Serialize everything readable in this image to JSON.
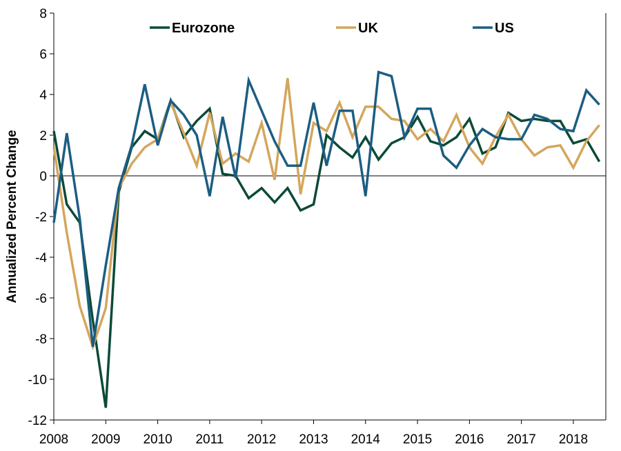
{
  "chart_data": {
    "type": "line",
    "title": "",
    "xlabel": "",
    "ylabel": "Annualized Percent Change",
    "ylim": [
      -12,
      8
    ],
    "yticks": [
      8,
      6,
      4,
      2,
      0,
      -2,
      -4,
      -6,
      -8,
      -10,
      -12
    ],
    "xlim": [
      2008,
      2018.625
    ],
    "xticks": [
      2008,
      2009,
      2010,
      2011,
      2012,
      2013,
      2014,
      2015,
      2016,
      2017,
      2018
    ],
    "grid": false,
    "legend": "top",
    "x": [
      2008.0,
      2008.25,
      2008.5,
      2008.75,
      2009.0,
      2009.25,
      2009.5,
      2009.75,
      2010.0,
      2010.25,
      2010.5,
      2010.75,
      2011.0,
      2011.25,
      2011.5,
      2011.75,
      2012.0,
      2012.25,
      2012.5,
      2012.75,
      2013.0,
      2013.25,
      2013.5,
      2013.75,
      2014.0,
      2014.25,
      2014.5,
      2014.75,
      2015.0,
      2015.25,
      2015.5,
      2015.75,
      2016.0,
      2016.25,
      2016.5,
      2016.75,
      2017.0,
      2017.25,
      2017.5,
      2017.75,
      2018.0,
      2018.25,
      2018.5
    ],
    "series": [
      {
        "name": "Eurozone",
        "color": "#0c4a38",
        "values": [
          2.2,
          -1.4,
          -2.3,
          -7.1,
          -11.4,
          -0.8,
          1.4,
          2.2,
          1.8,
          3.7,
          1.9,
          2.7,
          3.3,
          0.1,
          0.0,
          -1.1,
          -0.6,
          -1.3,
          -0.6,
          -1.7,
          -1.4,
          2.0,
          1.4,
          0.9,
          1.9,
          0.8,
          1.6,
          1.9,
          2.9,
          1.7,
          1.5,
          1.9,
          2.8,
          1.1,
          1.4,
          3.1,
          2.7,
          2.8,
          2.7,
          2.7,
          1.6,
          1.8,
          0.7
        ]
      },
      {
        "name": "UK",
        "color": "#d4a65c",
        "values": [
          1.4,
          -2.8,
          -6.4,
          -8.4,
          -6.5,
          -0.6,
          0.6,
          1.4,
          1.8,
          3.6,
          2.1,
          0.5,
          3.1,
          0.6,
          1.1,
          0.7,
          2.6,
          -0.2,
          4.8,
          -0.9,
          2.6,
          2.2,
          3.6,
          1.9,
          3.4,
          3.4,
          2.8,
          2.7,
          1.8,
          2.3,
          1.7,
          3.0,
          1.4,
          0.6,
          1.9,
          3.0,
          1.8,
          1.0,
          1.4,
          1.5,
          0.4,
          1.7,
          2.5
        ]
      },
      {
        "name": "US",
        "color": "#1c5d82",
        "values": [
          -2.3,
          2.1,
          -2.1,
          -8.4,
          -4.4,
          -0.6,
          1.5,
          4.5,
          1.5,
          3.7,
          3.0,
          2.0,
          -1.0,
          2.9,
          -0.1,
          4.7,
          3.2,
          1.7,
          0.5,
          0.5,
          3.6,
          0.5,
          3.2,
          3.2,
          -1.0,
          5.1,
          4.9,
          1.9,
          3.3,
          3.3,
          1.0,
          0.4,
          1.5,
          2.3,
          1.9,
          1.8,
          1.8,
          3.0,
          2.8,
          2.3,
          2.2,
          4.2,
          3.5
        ]
      }
    ]
  }
}
